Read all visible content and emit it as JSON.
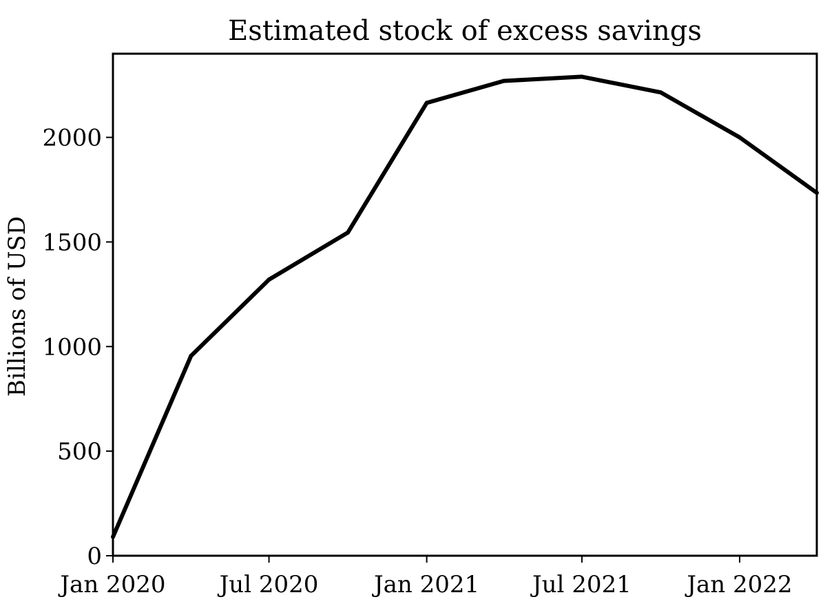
{
  "chart_data": {
    "type": "line",
    "title": "Estimated stock of excess savings",
    "xlabel": "",
    "ylabel": "Billions of USD",
    "x": [
      "2020-01-01",
      "2020-04-01",
      "2020-07-01",
      "2020-10-01",
      "2021-01-01",
      "2021-04-01",
      "2021-07-01",
      "2021-10-01",
      "2022-01-01",
      "2022-04-01"
    ],
    "series": [
      {
        "values": [
          90,
          955,
          1320,
          1545,
          2165,
          2270,
          2290,
          2215,
          2000,
          1735
        ]
      }
    ],
    "xlim": [
      "2020-01-01",
      "2022-04-01"
    ],
    "ylim": [
      0,
      2400
    ],
    "xticks": [
      {
        "value": "2020-01-01",
        "label": "Jan 2020"
      },
      {
        "value": "2020-07-01",
        "label": "Jul 2020"
      },
      {
        "value": "2021-01-01",
        "label": "Jan 2021"
      },
      {
        "value": "2021-07-01",
        "label": "Jul 2021"
      },
      {
        "value": "2022-01-01",
        "label": "Jan 2022"
      }
    ],
    "yticks": [
      {
        "value": 0,
        "label": "0"
      },
      {
        "value": 500,
        "label": "500"
      },
      {
        "value": 1000,
        "label": "1000"
      },
      {
        "value": 1500,
        "label": "1500"
      },
      {
        "value": 2000,
        "label": "2000"
      }
    ],
    "grid": false,
    "line_color": "#000000"
  }
}
